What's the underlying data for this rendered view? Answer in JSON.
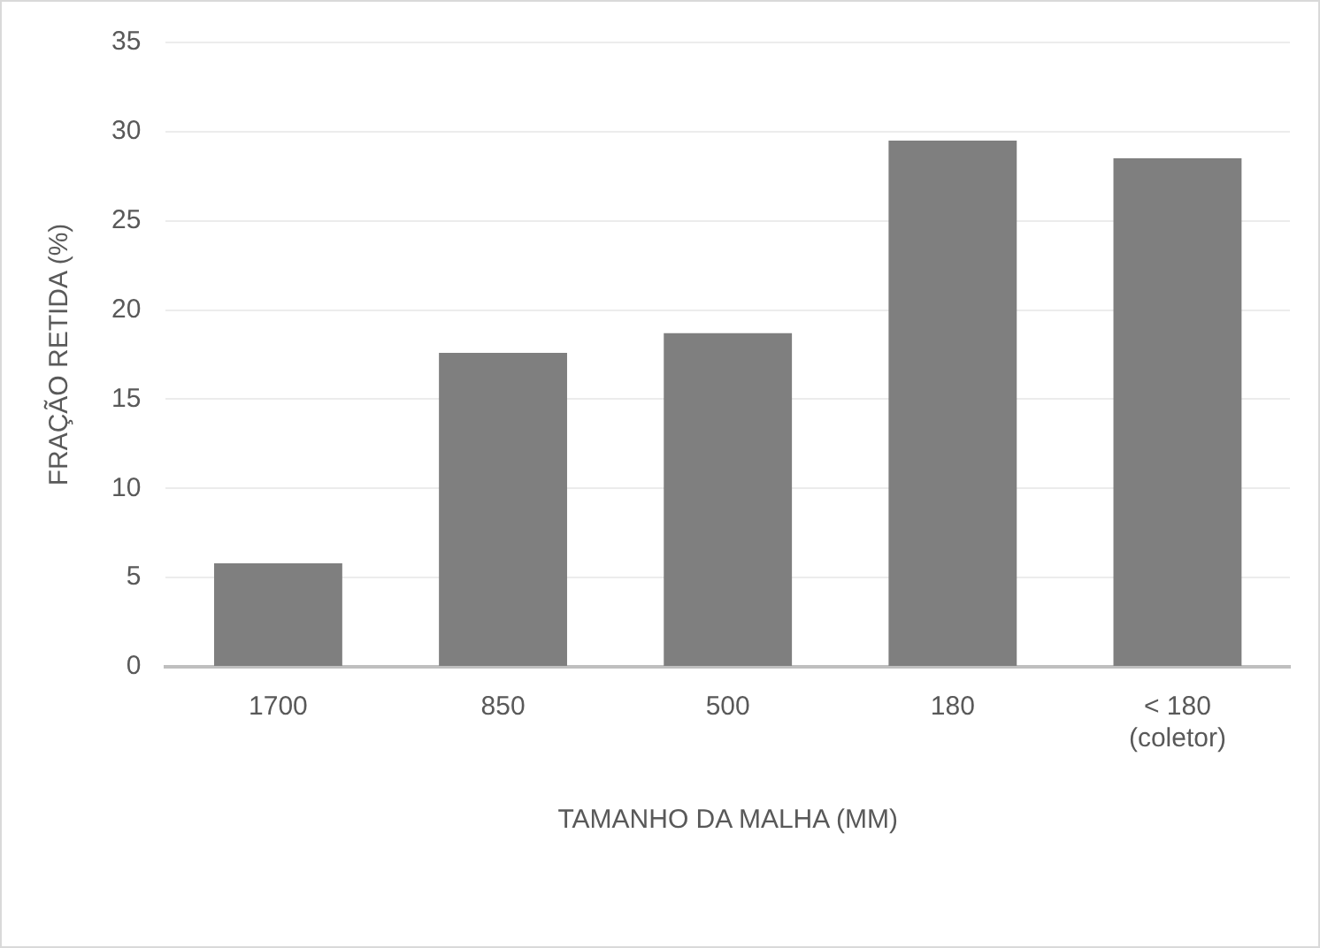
{
  "chart_data": {
    "type": "bar",
    "xlabel": "TAMANHO DA MALHA (MM)",
    "ylabel": "FRAÇÃO RETIDA (%)",
    "categories": [
      "1700",
      "850",
      "500",
      "180",
      "< 180\n(coletor)"
    ],
    "values": [
      5.8,
      17.6,
      18.7,
      29.5,
      28.5
    ],
    "color": "#7f7f7f",
    "ylim": [
      0,
      35
    ],
    "yticks": [
      0,
      5,
      10,
      15,
      20,
      25,
      30,
      35
    ],
    "grid": "y",
    "legend": false
  }
}
